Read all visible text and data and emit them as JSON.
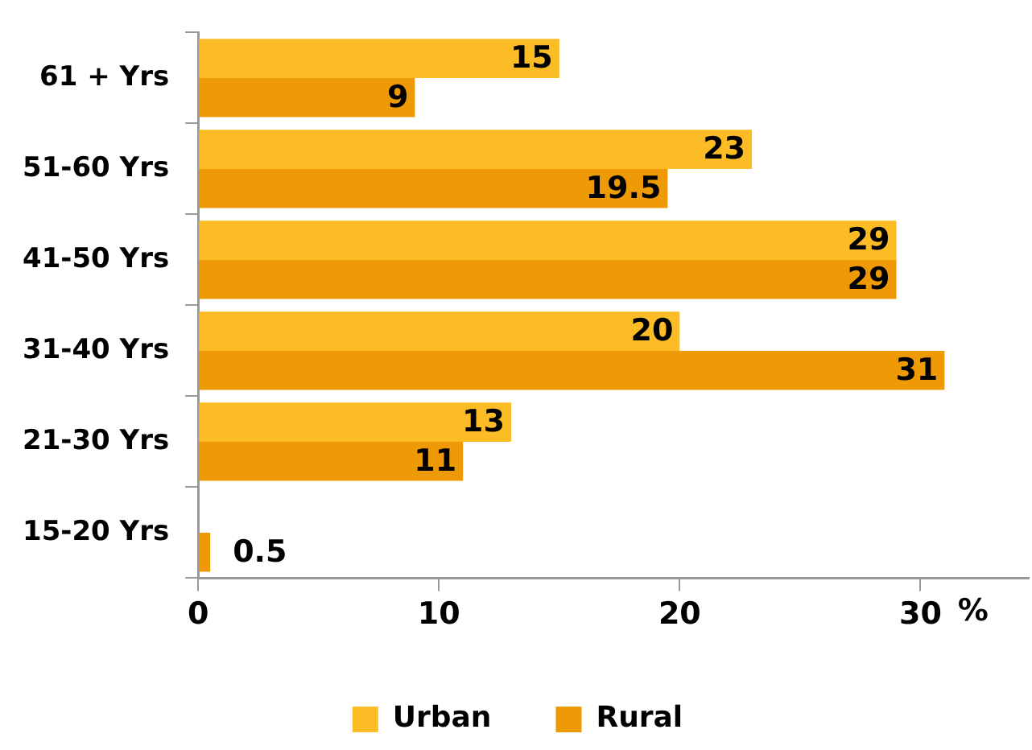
{
  "chart_data": {
    "type": "bar",
    "orientation": "horizontal",
    "categories": [
      "61 + Yrs",
      "51-60 Yrs",
      "41-50 Yrs",
      "31-40 Yrs",
      "21-30 Yrs",
      "15-20 Yrs"
    ],
    "series": [
      {
        "name": "Urban",
        "color": "#fbbc26",
        "values": [
          15,
          23,
          29,
          20,
          13,
          null
        ]
      },
      {
        "name": "Rural",
        "color": "#ee9906",
        "values": [
          9,
          19.5,
          29,
          31,
          11,
          0.5
        ]
      }
    ],
    "xlabel": "%",
    "xlim": [
      0,
      34.5
    ],
    "xticks": [
      0,
      10,
      20,
      30
    ],
    "grid": false,
    "legend": "bottom",
    "data_labels": true
  }
}
